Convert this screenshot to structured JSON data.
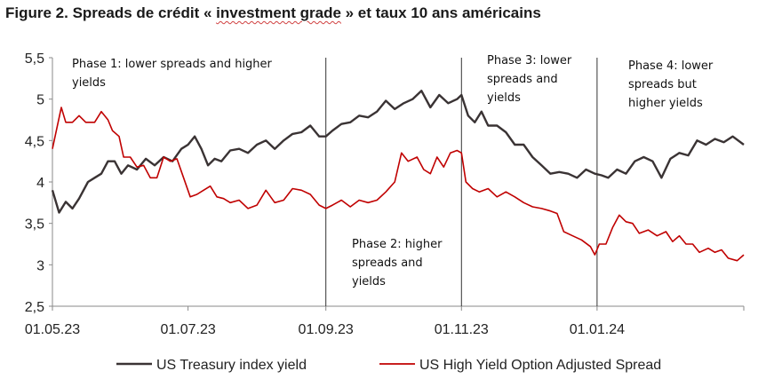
{
  "title_parts": {
    "prefix": "Figure 2. Spreads de crédit «  ",
    "highlight": "investment grade",
    "suffix": "  » et taux 10 ans américains"
  },
  "colors": {
    "treasury": "#3a3334",
    "hy": "#c00000",
    "axis": "#8a8a8a",
    "divider": "#333333"
  },
  "chart_data": {
    "type": "line",
    "title": "Figure 2. Spreads de crédit « investment grade » et taux 10 ans américains",
    "xlabel": "",
    "ylabel": "",
    "ylim": [
      2.5,
      5.5
    ],
    "x_domain_days": [
      0,
      311
    ],
    "yticks": [
      "2,5",
      "3",
      "3,5",
      "4",
      "4,5",
      "5",
      "5,5"
    ],
    "xticks": [
      {
        "label": "01.05.23",
        "day": 0
      },
      {
        "label": "01.07.23",
        "day": 61
      },
      {
        "label": "01.09.23",
        "day": 123
      },
      {
        "label": "01.11.23",
        "day": 184
      },
      {
        "label": "01.01.24",
        "day": 245
      }
    ],
    "phase_dividers_days": [
      123,
      184,
      245
    ],
    "phases": [
      {
        "lines": [
          "Phase 1: lower spreads and higher",
          "yields"
        ]
      },
      {
        "lines": [
          "Phase 2: higher",
          "spreads and",
          "yields"
        ]
      },
      {
        "lines": [
          "Phase 3: lower",
          "spreads and",
          "yields"
        ]
      },
      {
        "lines": [
          "Phase 4: lower",
          "spreads but",
          "higher yields"
        ]
      }
    ],
    "legend_position": "bottom",
    "series": [
      {
        "name": "US Treasury index yield",
        "color": "#3a3334",
        "points": [
          [
            0,
            3.9
          ],
          [
            3,
            3.63
          ],
          [
            6,
            3.76
          ],
          [
            9,
            3.68
          ],
          [
            12,
            3.8
          ],
          [
            16,
            4.0
          ],
          [
            19,
            4.05
          ],
          [
            22,
            4.1
          ],
          [
            25,
            4.25
          ],
          [
            28,
            4.25
          ],
          [
            31,
            4.1
          ],
          [
            34,
            4.2
          ],
          [
            38,
            4.15
          ],
          [
            42,
            4.28
          ],
          [
            46,
            4.2
          ],
          [
            50,
            4.3
          ],
          [
            54,
            4.25
          ],
          [
            58,
            4.4
          ],
          [
            61,
            4.45
          ],
          [
            64,
            4.55
          ],
          [
            67,
            4.4
          ],
          [
            70,
            4.2
          ],
          [
            73,
            4.28
          ],
          [
            76,
            4.25
          ],
          [
            80,
            4.38
          ],
          [
            84,
            4.4
          ],
          [
            88,
            4.35
          ],
          [
            92,
            4.45
          ],
          [
            96,
            4.5
          ],
          [
            100,
            4.4
          ],
          [
            104,
            4.5
          ],
          [
            108,
            4.58
          ],
          [
            112,
            4.6
          ],
          [
            116,
            4.68
          ],
          [
            120,
            4.55
          ],
          [
            123,
            4.55
          ],
          [
            126,
            4.62
          ],
          [
            130,
            4.7
          ],
          [
            134,
            4.72
          ],
          [
            138,
            4.8
          ],
          [
            142,
            4.78
          ],
          [
            146,
            4.85
          ],
          [
            150,
            4.98
          ],
          [
            154,
            4.88
          ],
          [
            158,
            4.95
          ],
          [
            162,
            5.0
          ],
          [
            166,
            5.1
          ],
          [
            170,
            4.9
          ],
          [
            174,
            5.05
          ],
          [
            178,
            4.95
          ],
          [
            182,
            5.0
          ],
          [
            184,
            5.05
          ],
          [
            187,
            4.8
          ],
          [
            190,
            4.72
          ],
          [
            193,
            4.85
          ],
          [
            196,
            4.68
          ],
          [
            200,
            4.68
          ],
          [
            204,
            4.6
          ],
          [
            208,
            4.45
          ],
          [
            212,
            4.45
          ],
          [
            216,
            4.3
          ],
          [
            220,
            4.2
          ],
          [
            224,
            4.1
          ],
          [
            228,
            4.12
          ],
          [
            232,
            4.1
          ],
          [
            236,
            4.05
          ],
          [
            240,
            4.15
          ],
          [
            244,
            4.1
          ],
          [
            247,
            4.08
          ],
          [
            250,
            4.05
          ],
          [
            254,
            4.15
          ],
          [
            258,
            4.1
          ],
          [
            262,
            4.25
          ],
          [
            266,
            4.3
          ],
          [
            270,
            4.25
          ],
          [
            274,
            4.05
          ],
          [
            278,
            4.28
          ],
          [
            282,
            4.35
          ],
          [
            286,
            4.32
          ],
          [
            290,
            4.5
          ],
          [
            294,
            4.45
          ],
          [
            298,
            4.52
          ],
          [
            302,
            4.48
          ],
          [
            306,
            4.55
          ],
          [
            311,
            4.45
          ]
        ]
      },
      {
        "name": "US High Yield Option Adjusted Spread",
        "color": "#c00000",
        "points": [
          [
            0,
            4.4
          ],
          [
            2,
            4.65
          ],
          [
            4,
            4.9
          ],
          [
            6,
            4.72
          ],
          [
            9,
            4.72
          ],
          [
            12,
            4.8
          ],
          [
            15,
            4.72
          ],
          [
            19,
            4.72
          ],
          [
            22,
            4.85
          ],
          [
            25,
            4.75
          ],
          [
            27,
            4.62
          ],
          [
            30,
            4.55
          ],
          [
            32,
            4.3
          ],
          [
            35,
            4.3
          ],
          [
            38,
            4.18
          ],
          [
            41,
            4.2
          ],
          [
            44,
            4.05
          ],
          [
            47,
            4.05
          ],
          [
            50,
            4.3
          ],
          [
            53,
            4.25
          ],
          [
            56,
            4.28
          ],
          [
            59,
            4.05
          ],
          [
            62,
            3.82
          ],
          [
            65,
            3.85
          ],
          [
            68,
            3.9
          ],
          [
            71,
            3.95
          ],
          [
            74,
            3.82
          ],
          [
            77,
            3.8
          ],
          [
            80,
            3.75
          ],
          [
            84,
            3.78
          ],
          [
            88,
            3.68
          ],
          [
            92,
            3.72
          ],
          [
            96,
            3.9
          ],
          [
            100,
            3.75
          ],
          [
            104,
            3.78
          ],
          [
            108,
            3.92
          ],
          [
            112,
            3.9
          ],
          [
            116,
            3.85
          ],
          [
            120,
            3.72
          ],
          [
            123,
            3.68
          ],
          [
            126,
            3.72
          ],
          [
            130,
            3.78
          ],
          [
            134,
            3.7
          ],
          [
            138,
            3.78
          ],
          [
            142,
            3.75
          ],
          [
            146,
            3.78
          ],
          [
            150,
            3.88
          ],
          [
            154,
            4.0
          ],
          [
            157,
            4.35
          ],
          [
            160,
            4.25
          ],
          [
            164,
            4.3
          ],
          [
            167,
            4.15
          ],
          [
            170,
            4.1
          ],
          [
            173,
            4.3
          ],
          [
            176,
            4.18
          ],
          [
            179,
            4.35
          ],
          [
            182,
            4.38
          ],
          [
            184,
            4.35
          ],
          [
            186,
            4.0
          ],
          [
            189,
            3.92
          ],
          [
            192,
            3.88
          ],
          [
            196,
            3.92
          ],
          [
            200,
            3.82
          ],
          [
            204,
            3.88
          ],
          [
            208,
            3.82
          ],
          [
            212,
            3.75
          ],
          [
            216,
            3.7
          ],
          [
            220,
            3.68
          ],
          [
            224,
            3.65
          ],
          [
            227,
            3.62
          ],
          [
            230,
            3.4
          ],
          [
            234,
            3.35
          ],
          [
            238,
            3.3
          ],
          [
            242,
            3.22
          ],
          [
            244,
            3.12
          ],
          [
            246,
            3.25
          ],
          [
            249,
            3.25
          ],
          [
            252,
            3.45
          ],
          [
            255,
            3.6
          ],
          [
            258,
            3.52
          ],
          [
            261,
            3.5
          ],
          [
            264,
            3.38
          ],
          [
            268,
            3.42
          ],
          [
            272,
            3.35
          ],
          [
            276,
            3.4
          ],
          [
            279,
            3.28
          ],
          [
            282,
            3.35
          ],
          [
            285,
            3.25
          ],
          [
            288,
            3.25
          ],
          [
            291,
            3.15
          ],
          [
            295,
            3.2
          ],
          [
            298,
            3.15
          ],
          [
            301,
            3.18
          ],
          [
            304,
            3.08
          ],
          [
            308,
            3.05
          ],
          [
            311,
            3.12
          ]
        ]
      }
    ]
  }
}
